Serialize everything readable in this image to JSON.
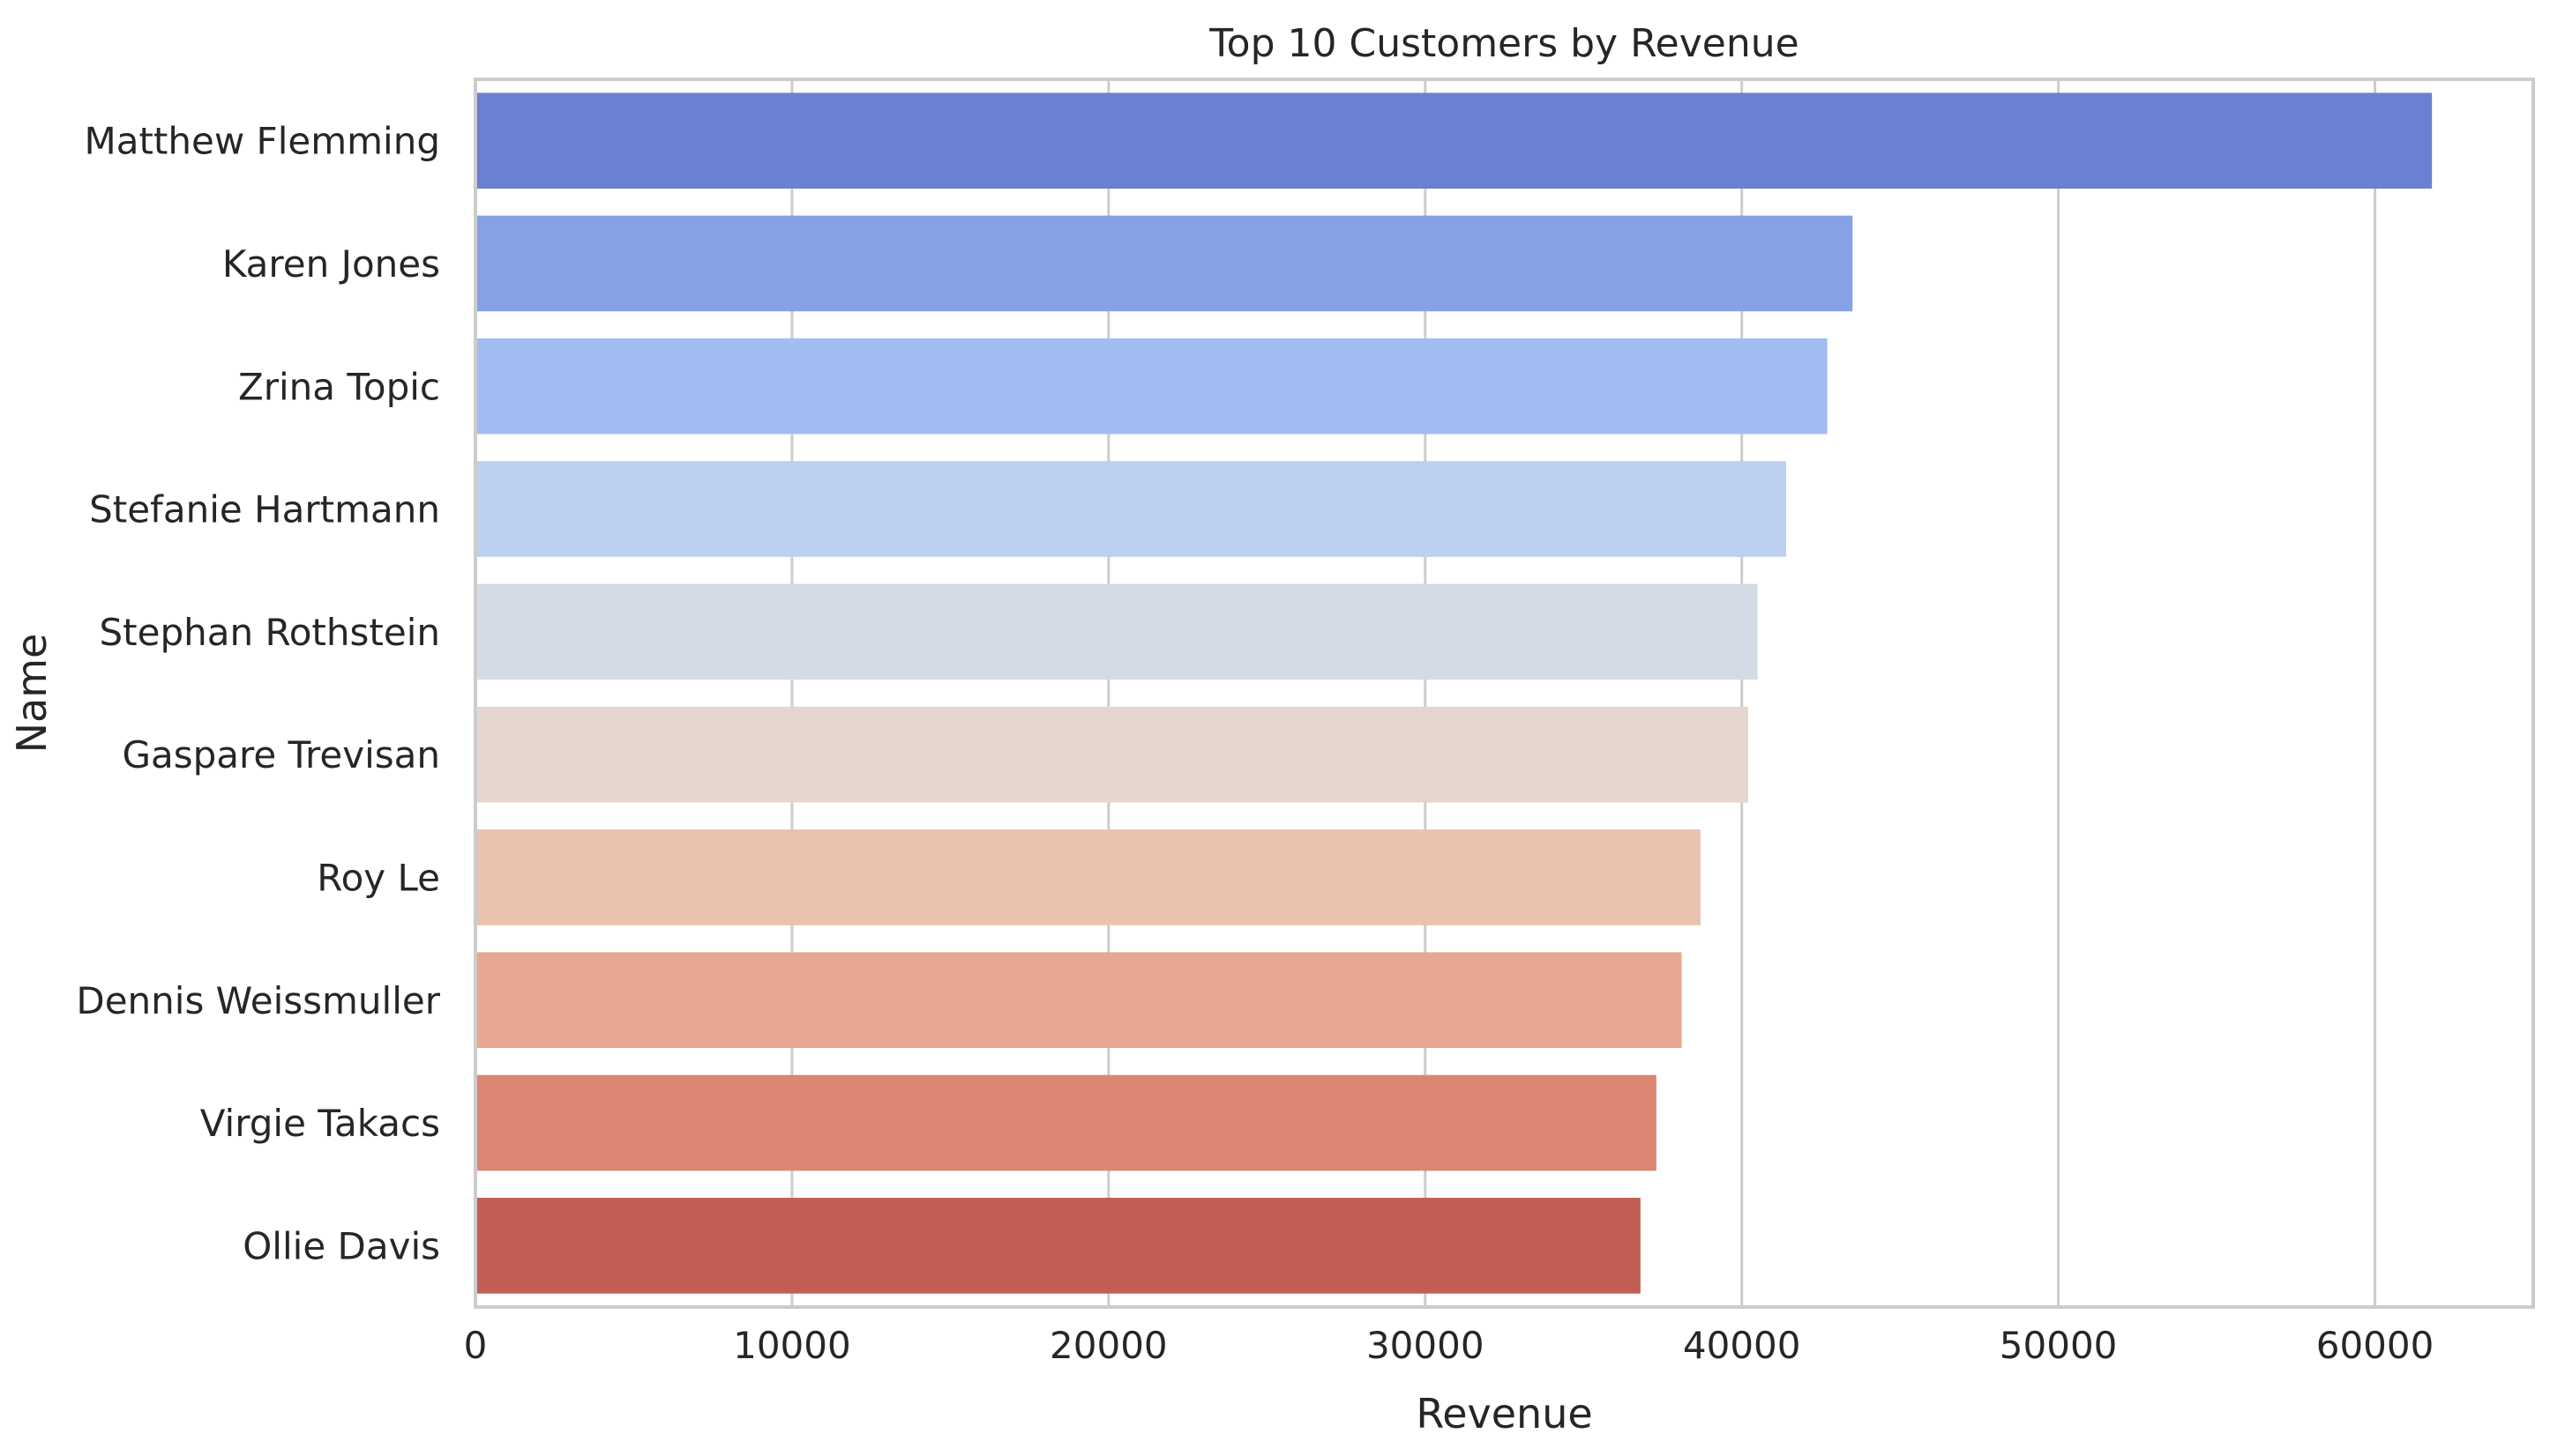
{
  "chart_data": {
    "type": "bar",
    "orientation": "horizontal",
    "title": "Top 10 Customers by Revenue",
    "xlabel": "Revenue",
    "ylabel": "Name",
    "categories": [
      "Matthew Flemming",
      "Karen Jones",
      "Zrina Topic",
      "Stefanie Hartmann",
      "Stephan Rothstein",
      "Gaspare Trevisan",
      "Roy Le",
      "Dennis Weissmuller",
      "Virgie Takacs",
      "Ollie Davis"
    ],
    "values": [
      61800,
      43500,
      42700,
      41400,
      40500,
      40200,
      38700,
      38100,
      37300,
      36800
    ],
    "colors": [
      "#6a80d2",
      "#86a1e6",
      "#a2bcf2",
      "#bdd0f0",
      "#d5dbe6",
      "#e4d6ce",
      "#eac3b0",
      "#e6a890",
      "#da8673",
      "#c15f55"
    ],
    "xlim": [
      0,
      65000
    ],
    "xticks": [
      0,
      10000,
      20000,
      30000,
      40000,
      50000,
      60000
    ],
    "xtick_labels": [
      "0",
      "10000",
      "20000",
      "30000",
      "40000",
      "50000",
      "60000"
    ],
    "grid": true,
    "legend": "none"
  }
}
